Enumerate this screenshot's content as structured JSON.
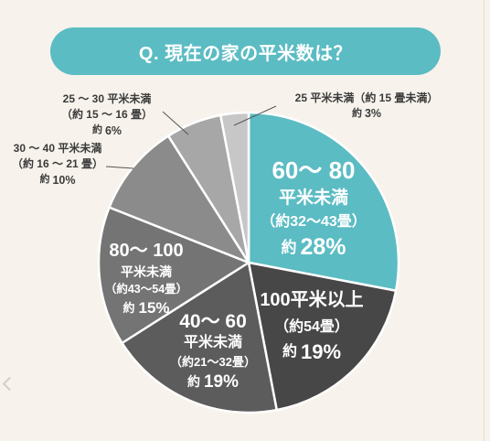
{
  "page": {
    "background": "#f7f3ec"
  },
  "colors": {
    "banner": "#5bbcc3",
    "outside_text": "#3a3a3a",
    "slice_border": "#ffffff",
    "leader_line": "#555555"
  },
  "icons": {
    "nav_prev": "chevron-left-icon"
  },
  "chart_data": {
    "type": "pie",
    "title": "Q. 現在の家の平米数は？",
    "start": "top",
    "direction": "clockwise",
    "slices": [
      {
        "label": [
          "60〜 80",
          "平米未満"
        ],
        "sublabel": "（約32〜43畳）",
        "prefix": "約",
        "pct_label": "28%",
        "value": 28,
        "color": "#5bbcc3",
        "label_placement": "inside"
      },
      {
        "label": [
          "100平米以上"
        ],
        "sublabel": "（約54畳）",
        "prefix": "約",
        "pct_label": "19%",
        "value": 19,
        "color": "#474747",
        "label_placement": "inside"
      },
      {
        "label": [
          "40〜 60",
          "平米未満"
        ],
        "sublabel": "（約21〜32畳）",
        "prefix": "約",
        "pct_label": "19%",
        "value": 19,
        "color": "#5c5c5c",
        "label_placement": "inside"
      },
      {
        "label": [
          "80〜 100",
          "平米未満"
        ],
        "sublabel": "（約43〜54畳）",
        "prefix": "約",
        "pct_label": "15%",
        "value": 15,
        "color": "#747474",
        "label_placement": "inside"
      },
      {
        "label": [
          "30 〜 40 平米未満"
        ],
        "sublabel": "（約 16 〜 21 畳）",
        "prefix": "約",
        "pct_label": "10%",
        "value": 10,
        "color": "#8b8b8b",
        "label_placement": "outside"
      },
      {
        "label": [
          "25 〜 30 平米未満"
        ],
        "sublabel": "（約 15 〜 16 畳）",
        "prefix": "約",
        "pct_label": "6%",
        "value": 6,
        "color": "#a7a7a7",
        "label_placement": "outside"
      },
      {
        "label": [
          "25 平米未満（約 15 畳未満）"
        ],
        "prefix": "約",
        "pct_label": "3%",
        "value": 3,
        "color": "#c7c7c7",
        "label_placement": "outside"
      }
    ]
  }
}
